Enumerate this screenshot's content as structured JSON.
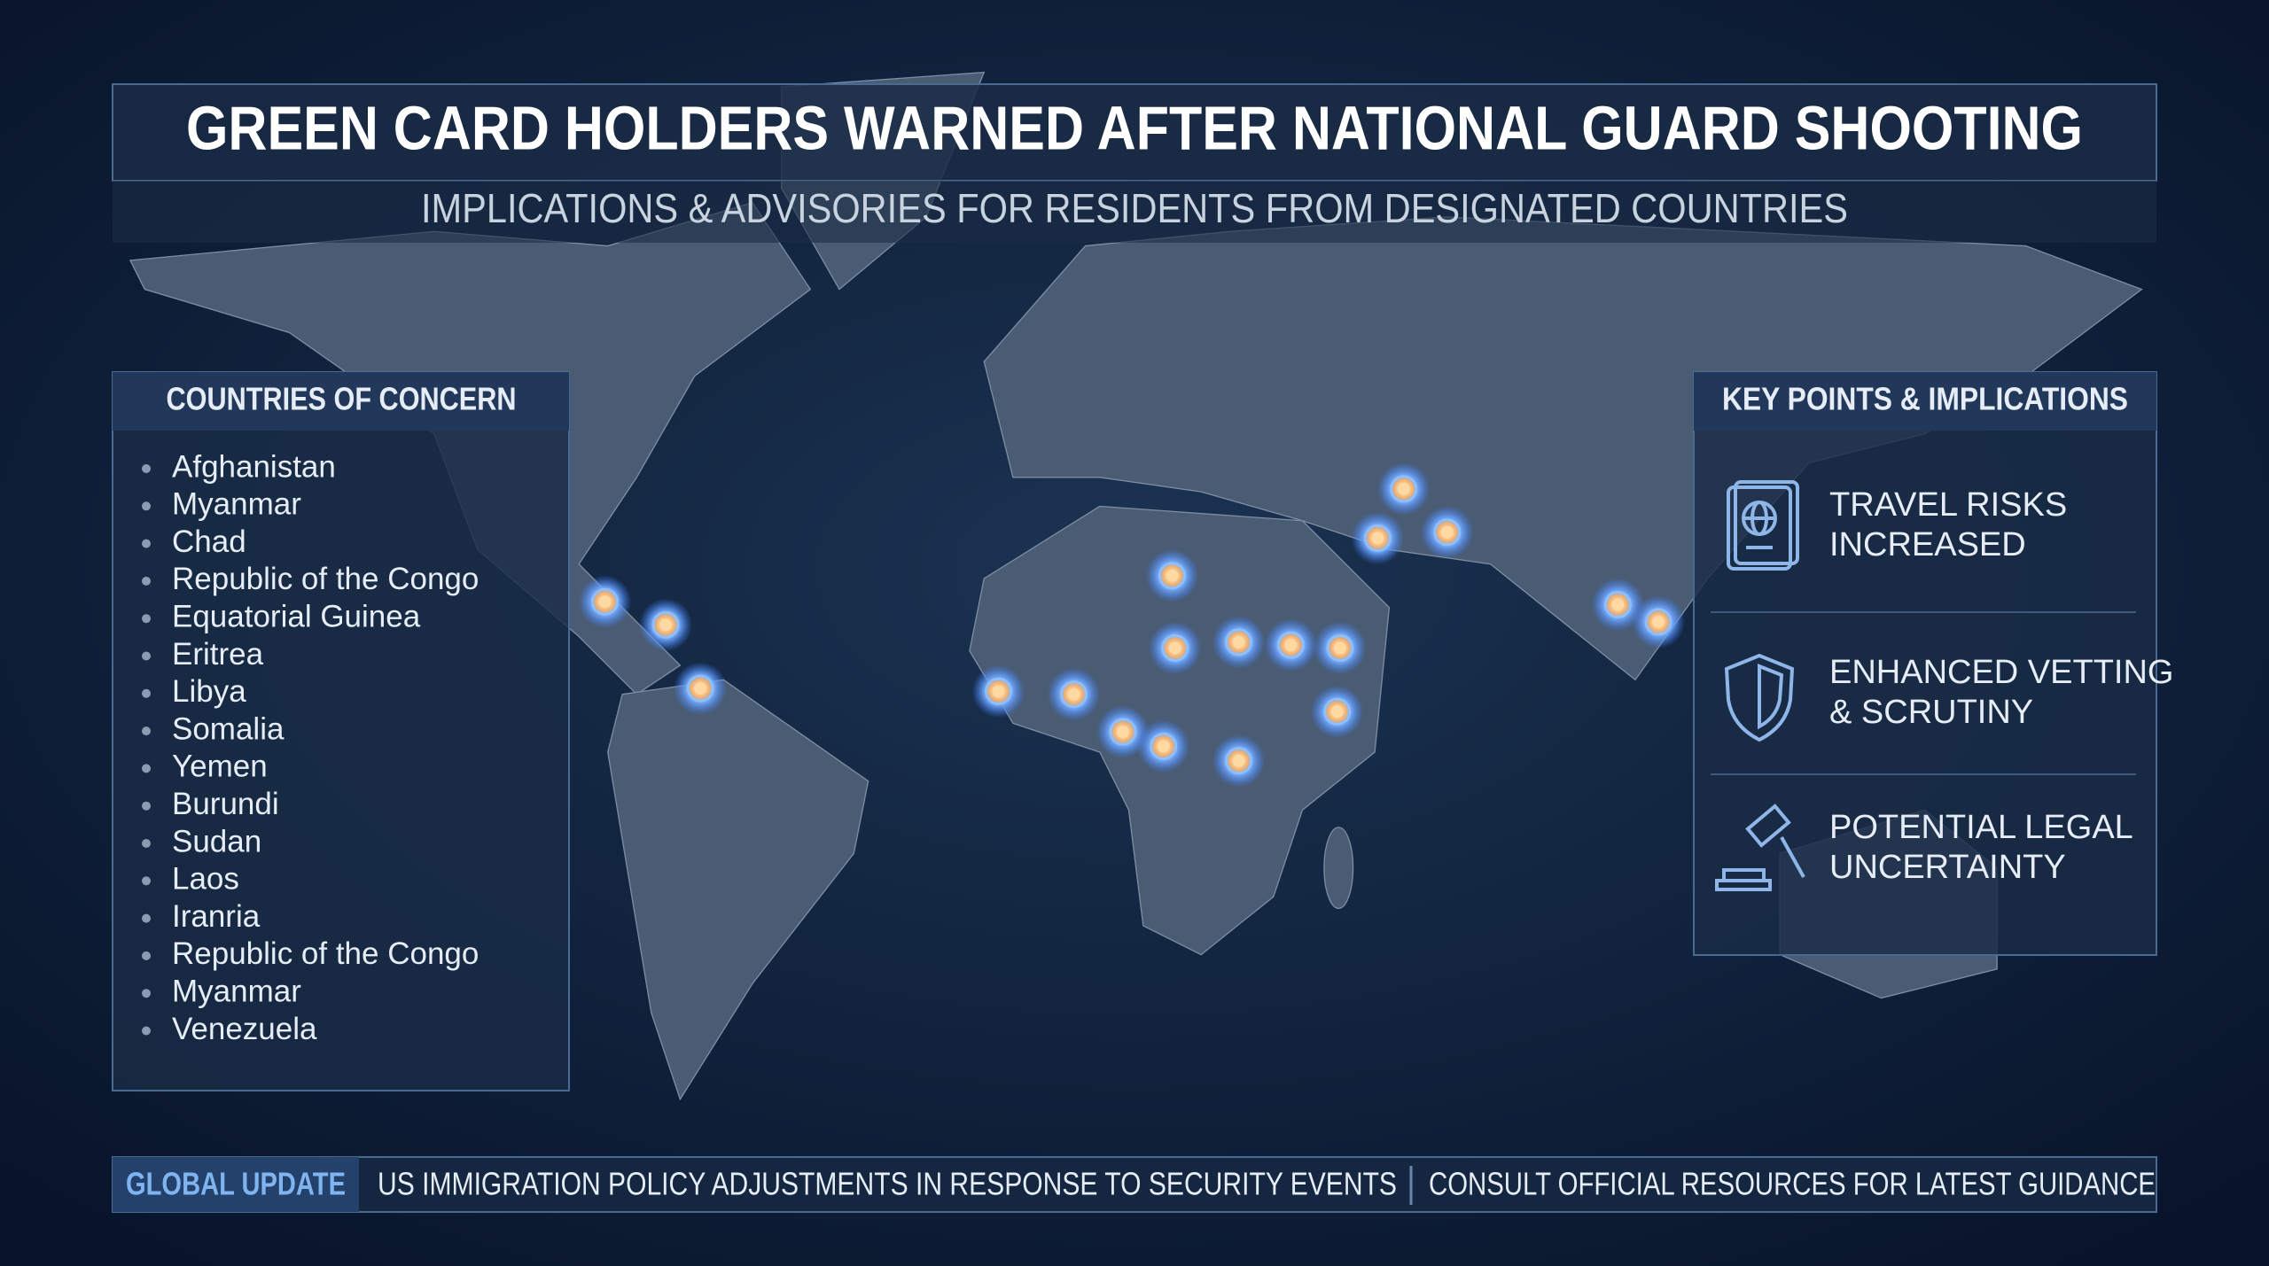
{
  "header": {
    "title": "GREEN CARD HOLDERS WARNED AFTER NATIONAL GUARD SHOOTING",
    "subtitle": "IMPLICATIONS & ADVISORIES FOR RESIDENTS FROM DESIGNATED COUNTRIES"
  },
  "countries": {
    "title": "COUNTRIES OF CONCERN",
    "items": [
      "Afghanistan",
      "Myanmar",
      "Chad",
      "Republic of the Congo",
      "Equatorial Guinea",
      "Eritrea",
      "Libya",
      "Somalia",
      "Yemen",
      "Burundi",
      "Sudan",
      "Laos",
      "Iranria",
      "Republic of the Congo",
      "Myanmar",
      "Venezuela"
    ]
  },
  "key_points": {
    "title": "KEY POINTS & IMPLICATIONS",
    "items": [
      {
        "lines": [
          "TRAVEL RISKS",
          "INCREASED"
        ]
      },
      {
        "lines": [
          "ENHANCED VETTING",
          "& SCRUTINY"
        ]
      },
      {
        "lines": [
          "POTENTIAL LEGAL",
          "UNCERTAINTY"
        ]
      }
    ]
  },
  "ticker": {
    "label": "GLOBAL UPDATE",
    "messages": [
      "US IMMIGRATION POLICY ADJUSTMENTS IN RESPONSE TO SECURITY EVENTS",
      "CONSULT OFFICIAL RESOURCES FOR LATEST GUIDANCE"
    ]
  }
}
